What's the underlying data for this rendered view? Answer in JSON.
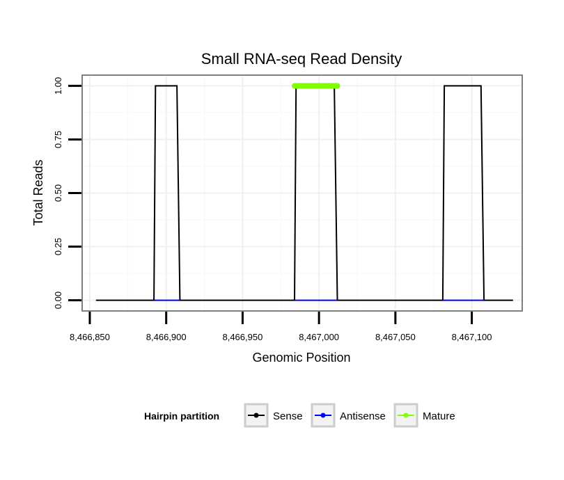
{
  "chart_data": {
    "type": "line",
    "title": "Small RNA-seq Read Density",
    "xlabel": "Genomic Position",
    "ylabel": "Total Reads",
    "xlim": [
      8466845,
      8467133
    ],
    "ylim": [
      -0.05,
      1.05
    ],
    "x_ticks": [
      8466850,
      8466900,
      8466950,
      8467000,
      8467050,
      8467100
    ],
    "x_tick_labels": [
      "8,466,850",
      "8,466,900",
      "8,466,950",
      "8,467,000",
      "8,467,050",
      "8,467,100"
    ],
    "y_ticks": [
      0,
      0.25,
      0.5,
      0.75,
      1
    ],
    "y_tick_labels": [
      "0.00",
      "0.25",
      "0.50",
      "0.75",
      "1.00"
    ],
    "grid": true,
    "legend": {
      "title": "Hairpin partition",
      "position": "bottom",
      "entries": [
        {
          "label": "Sense",
          "color": "#000000"
        },
        {
          "label": "Antisense",
          "color": "#0000ff"
        },
        {
          "label": "Mature",
          "color": "#7fff00"
        }
      ]
    },
    "series": [
      {
        "name": "Sense",
        "color": "#000000",
        "x": [
          8466854,
          8466892,
          8466893,
          8466907,
          8466909,
          8466984,
          8466985,
          8467010,
          8467012,
          8467081,
          8467082,
          8467106,
          8467108,
          8467127
        ],
        "y": [
          0,
          0,
          1,
          1,
          0,
          0,
          1,
          1,
          0,
          0,
          1,
          1,
          0,
          0
        ]
      },
      {
        "name": "Antisense",
        "color": "#0000ff",
        "x": [
          8466892,
          8466909,
          8466984,
          8467012,
          8467081,
          8467108
        ],
        "y": [
          0,
          0,
          0,
          0,
          0,
          0
        ],
        "segments": true
      },
      {
        "name": "Mature",
        "color": "#7fff00",
        "x": [
          8466984,
          8467012
        ],
        "y": [
          1,
          1
        ]
      }
    ]
  }
}
